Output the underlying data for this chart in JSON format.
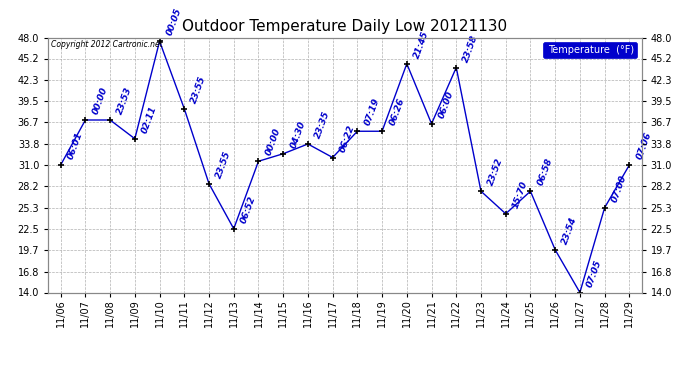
{
  "title": "Outdoor Temperature Daily Low 20121130",
  "legend_label": "Temperature  (°F)",
  "copyright": "Copyright 2012 Cartronic.net",
  "background_color": "#ffffff",
  "plot_bg_color": "#ffffff",
  "grid_color": "#b0b0b0",
  "line_color": "#0000cc",
  "marker_color": "#000000",
  "text_color": "#0000cc",
  "dates": [
    "11/06",
    "11/07",
    "11/08",
    "11/09",
    "11/10",
    "11/11",
    "11/12",
    "11/13",
    "11/14",
    "11/15",
    "11/16",
    "11/17",
    "11/18",
    "11/19",
    "11/20",
    "11/21",
    "11/22",
    "11/23",
    "11/24",
    "11/25",
    "11/26",
    "11/27",
    "11/28",
    "11/29"
  ],
  "values": [
    31.0,
    37.0,
    37.0,
    34.5,
    47.5,
    38.5,
    28.5,
    22.5,
    31.5,
    32.5,
    33.8,
    32.0,
    35.5,
    35.5,
    44.5,
    36.5,
    44.0,
    27.5,
    24.5,
    27.5,
    19.7,
    14.0,
    25.3,
    31.0
  ],
  "time_labels": [
    "06:01",
    "00:00",
    "23:53",
    "02:11",
    "00:05",
    "23:55",
    "23:55",
    "06:52",
    "00:00",
    "04:30",
    "23:35",
    "06:22",
    "07:19",
    "06:26",
    "21:45",
    "06:00",
    "23:58",
    "23:52",
    "15:70",
    "06:58",
    "23:54",
    "07:05",
    "07:00",
    "07:06"
  ],
  "ylim": [
    14.0,
    48.0
  ],
  "yticks": [
    14.0,
    16.8,
    19.7,
    22.5,
    25.3,
    28.2,
    31.0,
    33.8,
    36.7,
    39.5,
    42.3,
    45.2,
    48.0
  ],
  "title_fontsize": 11,
  "axis_fontsize": 7,
  "label_fontsize": 6.5
}
